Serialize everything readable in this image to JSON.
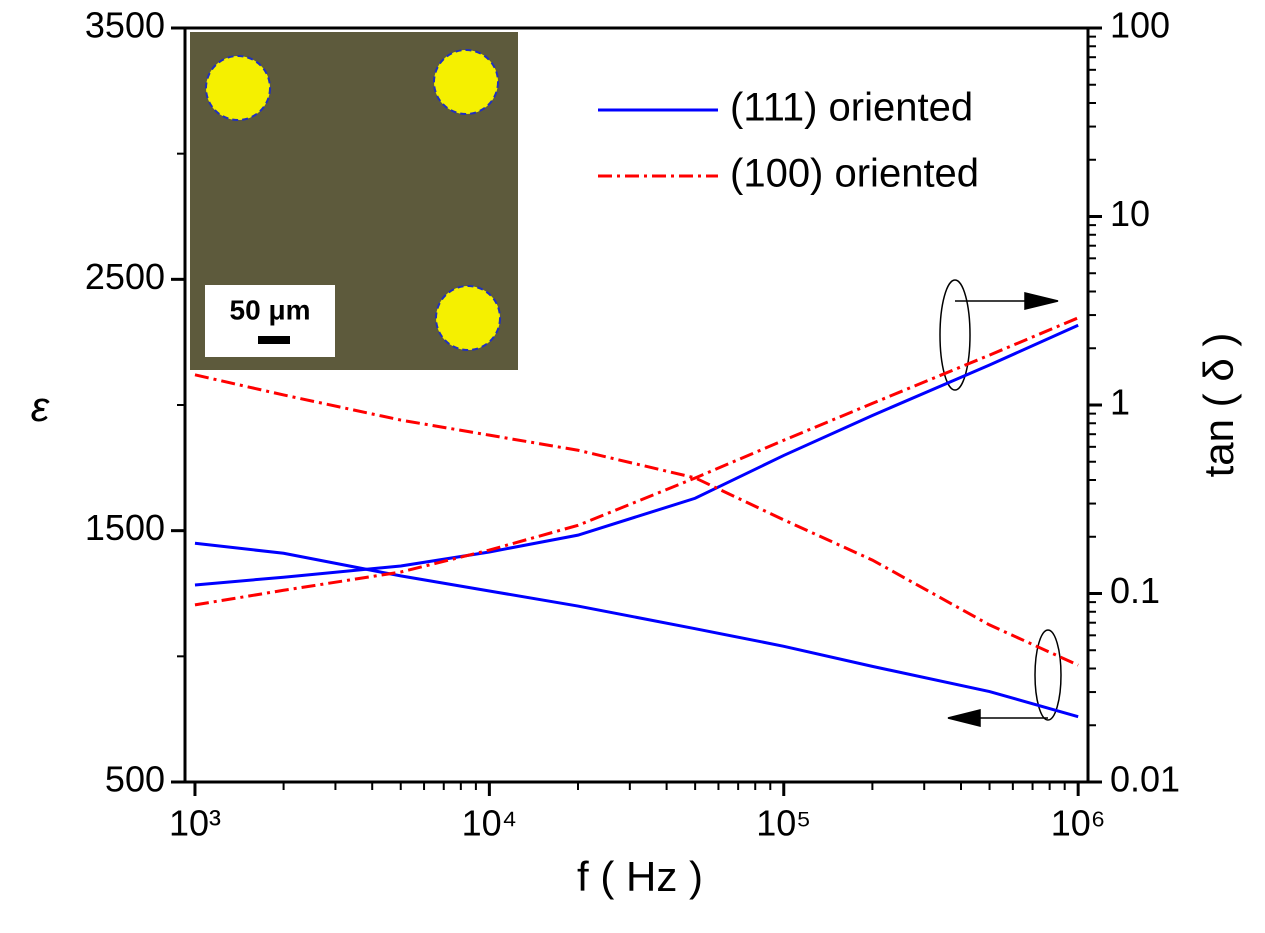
{
  "chart_data": {
    "type": "line",
    "x_label": "f ( Hz )",
    "y_label": "ε",
    "y2_label": "tan ( δ )",
    "inset_label": "50 μm",
    "x": [
      1000,
      2000,
      5000,
      10000,
      20000,
      50000,
      100000,
      200000,
      500000,
      1000000
    ],
    "xlim": [
      925,
      1080000
    ],
    "xscale": "log",
    "xticks": [
      {
        "value": 1000,
        "label": "10³"
      },
      {
        "value": 10000,
        "label": "10⁴"
      },
      {
        "value": 100000,
        "label": "10⁵"
      },
      {
        "value": 1000000,
        "label": "10⁶"
      }
    ],
    "ylim": [
      500,
      3500
    ],
    "yticks": [
      500,
      1500,
      2500,
      3500
    ],
    "yminor": [
      1000,
      2000,
      3000
    ],
    "y2lim": [
      0.01,
      100
    ],
    "y2scale": "log",
    "y2ticks": [
      0.01,
      0.1,
      1,
      10,
      100
    ],
    "legend": "upper right",
    "series": [
      {
        "name": "(111) oriented",
        "color": "#0000ff",
        "dash": "solid",
        "values": [
          1450,
          1410,
          1320,
          1260,
          1200,
          1110,
          1040,
          960,
          860,
          760
        ]
      },
      {
        "name": "(111) oriented",
        "color": "#0000ff",
        "dash": "solid",
        "axis": "y2",
        "values": [
          0.111,
          0.122,
          0.14,
          0.166,
          0.204,
          0.32,
          0.54,
          0.88,
          1.63,
          2.65
        ]
      },
      {
        "name": "(100) oriented",
        "color": "#ff0000",
        "dash": "dashdot",
        "values": [
          2120,
          2040,
          1940,
          1880,
          1820,
          1710,
          1543,
          1383,
          1125,
          965
        ]
      },
      {
        "name": "(100) oriented",
        "color": "#ff0000",
        "dash": "dashdot",
        "axis": "y2",
        "values": [
          0.087,
          0.104,
          0.13,
          0.17,
          0.23,
          0.41,
          0.65,
          1.02,
          1.84,
          2.9
        ]
      }
    ]
  }
}
